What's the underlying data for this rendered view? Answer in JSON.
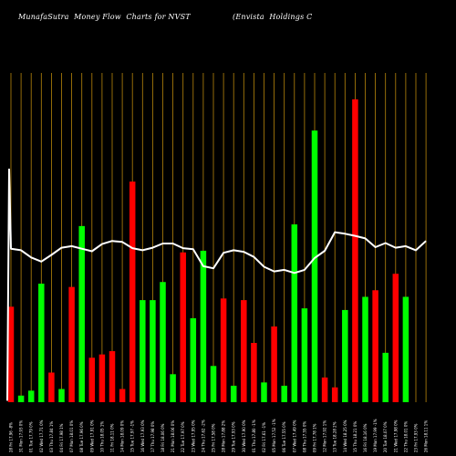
{
  "header": {
    "left_text": "MunafaSutra  Money Flow  Charts for NVST",
    "right_text": "(Envista  Holdings C"
  },
  "colors": {
    "background": "#000000",
    "grid_line": "#b8860b",
    "up_bar": "#00ff00",
    "down_bar": "#ff0000",
    "price_line": "#ffffff"
  },
  "chart_data": {
    "type": "bar",
    "grid": "vertical",
    "legend": "none",
    "categories": [
      "28 Fri 17.96 -8%",
      "31 Mon 17.93 0%",
      "01 Tue 17.79 0%",
      "02 Wed 17.71 0%",
      "03 Thu 17.84 1%",
      "04 Fri 17.98 1%",
      "07 Mon 18.01 0%",
      "08 Tue 17.96 0%",
      "09 Wed 17.91 0%",
      "10 Thu 18.05 1%",
      "11 Fri 18.11 0%",
      "14 Mon 18.09 0%",
      "15 Tue 17.97 -1%",
      "16 Wed 17.93 0%",
      "17 Thu 17.98 0%",
      "18 Fri 18.06 0%",
      "21 Mon 18.06 0%",
      "22 Tue 17.97 0%",
      "23 Wed 17.95 0%",
      "24 Thu 17.62 -2%",
      "25 Fri 17.58 0%",
      "28 Mon 17.88 2%",
      "29 Tue 17.93 0%",
      "30 Wed 17.90 0%",
      "01 Thu 17.80 -1%",
      "02 Fri 17.61 -1%",
      "05 Mon 17.52 -1%",
      "06 Tue 17.55 0%",
      "07 Wed 17.49 0%",
      "08 Thu 17.55 0%",
      "09 Fri 17.78 1%",
      "12 Mon 17.92 1%",
      "13 Tue 18.28 2%",
      "14 Wed 18.25 0%",
      "15 Thu 18.21 0%",
      "16 Fri 18.16 0%",
      "19 Mon 17.99 -1%",
      "20 Tue 18.07 0%",
      "21 Wed 17.98 0%",
      "22 Thu 18.01 0%",
      "23 Fri 17.93 0%",
      "26 Mon 18.11 1%"
    ],
    "x_tick_labels": [
      "28 Fri 17.96 -8%",
      "31 Mon 17.93 0%",
      "01 Tue 17.79 0%",
      "02 Wed 17.71 0%",
      "03 Thu 17.84 1%",
      "04 Fri 17.98 1%",
      "07 Mon 18.01 0%",
      "08 Tue 17.96 0%",
      "09 Wed 17.91 0%",
      "10 Thu 18.05 1%",
      "11 Fri 18.11 0%",
      "14 Mon 18.09 0%",
      "15 Tue 17.97 -1%",
      "16 Wed 17.93 0%",
      "17 Thu 17.98 0%",
      "18 Fri 18.06 0%",
      "21 Mon 18.06 0%",
      "22 Tue 17.97 0%",
      "23 Wed 17.95 0%",
      "24 Thu 17.62 -2%",
      "25 Fri 17.58 0%",
      "28 Mon 17.88 2%",
      "29 Tue 17.93 0%",
      "30 Wed 17.90 0%",
      "01 Thu 17.80 -1%",
      "02 Fri 17.61 -1%",
      "05 Mon 17.52 -1%",
      "06 Tue 17.55 0%",
      "07 Wed 17.49 0%",
      "08 Thu 17.55 0%",
      "09 Fri 17.78 1%",
      "12 Mon 17.92 1%",
      "13 Tue 18.28 2%",
      "14 Wed 18.25 0%",
      "15 Thu 18.21 0%",
      "16 Fri 18.16 0%",
      "19 Mon 17.99 -1%",
      "20 Tue 18.07 0%",
      "21 Wed 17.98 0%",
      "22 Thu 18.01 0%",
      "23 Fri 17.93 0%",
      "26 Mon 18.11 1%"
    ],
    "bar_values": [
      58,
      4,
      7,
      72,
      18,
      8,
      70,
      107,
      27,
      29,
      31,
      8,
      134,
      62,
      62,
      73,
      17,
      91,
      51,
      92,
      22,
      63,
      10,
      62,
      36,
      12,
      46,
      10,
      108,
      57,
      165,
      15,
      9,
      56,
      184,
      64,
      68,
      30,
      78,
      64,
      0,
      0
    ],
    "bar_directions": [
      "down",
      "up",
      "up",
      "up",
      "down",
      "up",
      "down",
      "up",
      "down",
      "down",
      "down",
      "down",
      "down",
      "up",
      "up",
      "up",
      "up",
      "down",
      "up",
      "up",
      "up",
      "down",
      "up",
      "down",
      "down",
      "up",
      "down",
      "up",
      "up",
      "up",
      "up",
      "down",
      "down",
      "up",
      "down",
      "up",
      "down",
      "up",
      "down",
      "up",
      "up",
      "up"
    ],
    "price_values": [
      19.5,
      17.96,
      17.93,
      17.79,
      17.71,
      17.84,
      17.98,
      18.01,
      17.96,
      17.91,
      18.05,
      18.11,
      18.09,
      17.97,
      17.93,
      17.98,
      18.06,
      18.06,
      17.97,
      17.95,
      17.62,
      17.58,
      17.88,
      17.93,
      17.9,
      17.8,
      17.61,
      17.52,
      17.55,
      17.49,
      17.55,
      17.78,
      17.92,
      18.28,
      18.25,
      18.21,
      18.16,
      17.99,
      18.07,
      17.98,
      18.01,
      17.93,
      18.11
    ],
    "bar_ylim": [
      0,
      200
    ],
    "price_ylim": [
      15.0,
      19.6
    ]
  }
}
